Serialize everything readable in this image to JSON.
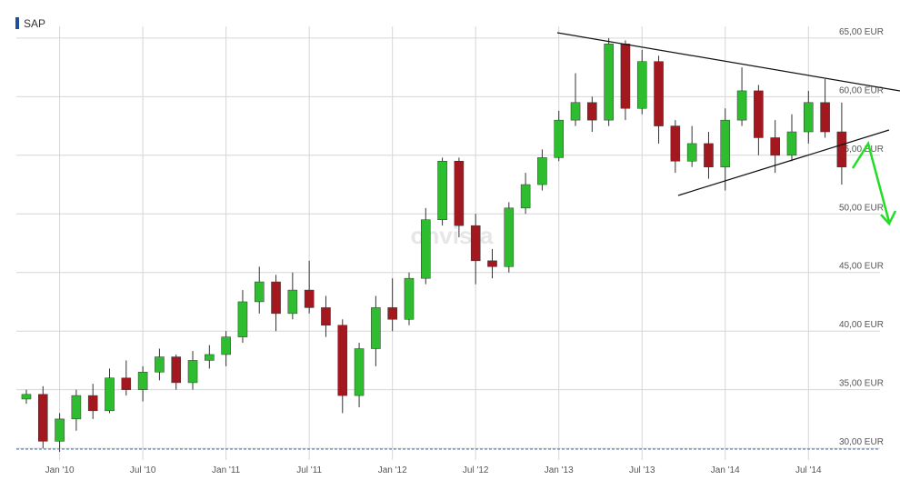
{
  "chart_data": {
    "type": "candlestick",
    "title": "SAP",
    "watermark": "onvista",
    "x": [
      2009.8,
      2009.9,
      2010.0,
      2010.1,
      2010.2,
      2010.3,
      2010.4,
      2010.5,
      2010.6,
      2010.7,
      2010.8,
      2010.9,
      2011.0,
      2011.1,
      2011.2,
      2011.3,
      2011.4,
      2011.5,
      2011.6,
      2011.7,
      2011.8,
      2011.9,
      2012.0,
      2012.1,
      2012.2,
      2012.3,
      2012.4,
      2012.5,
      2012.6,
      2012.7,
      2012.8,
      2012.9,
      2013.0,
      2013.1,
      2013.2,
      2013.3,
      2013.4,
      2013.5,
      2013.6,
      2013.7,
      2013.8,
      2013.9,
      2014.0,
      2014.1,
      2014.2,
      2014.3,
      2014.4,
      2014.5,
      2014.6,
      2014.7
    ],
    "open": [
      34.2,
      34.6,
      30.6,
      32.5,
      34.5,
      33.2,
      36,
      35,
      36.5,
      37.8,
      35.6,
      37.5,
      38,
      39.5,
      42.5,
      44.2,
      41.5,
      43.5,
      42,
      40.5,
      34.5,
      38.5,
      42,
      41,
      44.5,
      49.5,
      54.5,
      49,
      46,
      45.5,
      50.5,
      52.5,
      54.8,
      58,
      59.5,
      58,
      64.5,
      59,
      63,
      57.5,
      54.5,
      56,
      54,
      58,
      60.5,
      56.5,
      55,
      57,
      59.5,
      57
    ],
    "high": [
      35,
      35.3,
      33,
      35,
      35.5,
      36.8,
      37.5,
      37,
      38.5,
      38,
      38.3,
      38.8,
      40,
      43.5,
      45.5,
      44.8,
      45,
      46,
      43,
      41,
      39,
      43,
      44.5,
      45,
      50.5,
      54.8,
      54.8,
      50,
      47,
      51,
      53.5,
      55.5,
      58.8,
      62,
      60,
      65,
      64.8,
      64,
      63.5,
      58,
      57.5,
      57,
      59,
      62.5,
      61,
      58,
      58.5,
      60.5,
      61.5,
      59.5
    ],
    "low": [
      33.8,
      30,
      29.7,
      31.5,
      32.5,
      33,
      34.5,
      34,
      35.8,
      35,
      35,
      36.8,
      37,
      39,
      41.5,
      40,
      41,
      41.5,
      39.5,
      33,
      33.5,
      37,
      40,
      40.5,
      44,
      49,
      48,
      44,
      44.5,
      45,
      50,
      52,
      54.5,
      57.5,
      57,
      57.5,
      58,
      58.5,
      56,
      53.5,
      54,
      53,
      52,
      57.5,
      55,
      53.5,
      54.5,
      56,
      56.5,
      52.5
    ],
    "close": [
      34.6,
      30.6,
      32.5,
      34.5,
      33.2,
      36,
      35,
      36.5,
      37.8,
      35.6,
      37.5,
      38,
      39.5,
      42.5,
      44.2,
      41.5,
      43.5,
      42,
      40.5,
      34.5,
      38.5,
      42,
      41,
      44.5,
      49.5,
      54.5,
      49,
      46,
      45.5,
      50.5,
      52.5,
      54.8,
      58,
      59.5,
      58,
      64.5,
      59,
      63,
      57.5,
      54.5,
      56,
      54,
      58,
      60.5,
      56.5,
      55,
      57,
      59.5,
      57,
      54
    ],
    "up_color": "#2ebd2e",
    "down_color": "#a3171f",
    "xlim": [
      2009.74,
      2014.93
    ],
    "ylim": [
      29,
      66
    ],
    "xticks": [
      {
        "value": 2010.0,
        "label": "Jan '10"
      },
      {
        "value": 2010.5,
        "label": "Jul '10"
      },
      {
        "value": 2011.0,
        "label": "Jan '11"
      },
      {
        "value": 2011.5,
        "label": "Jul '11"
      },
      {
        "value": 2012.0,
        "label": "Jan '12"
      },
      {
        "value": 2012.5,
        "label": "Jul '12"
      },
      {
        "value": 2013.0,
        "label": "Jan '13"
      },
      {
        "value": 2013.5,
        "label": "Jul '13"
      },
      {
        "value": 2014.0,
        "label": "Jan '14"
      },
      {
        "value": 2014.5,
        "label": "Jul '14"
      }
    ],
    "yticks": [
      {
        "value": 30,
        "label": "30,00 EUR"
      },
      {
        "value": 35,
        "label": "35,00 EUR"
      },
      {
        "value": 40,
        "label": "40,00 EUR"
      },
      {
        "value": 45,
        "label": "45,00 EUR"
      },
      {
        "value": 50,
        "label": "50,00 EUR"
      },
      {
        "value": 55,
        "label": "55,00 EUR"
      },
      {
        "value": 60,
        "label": "60,00 EUR"
      },
      {
        "value": 65,
        "label": "65,00 EUR"
      }
    ],
    "grid": true
  }
}
